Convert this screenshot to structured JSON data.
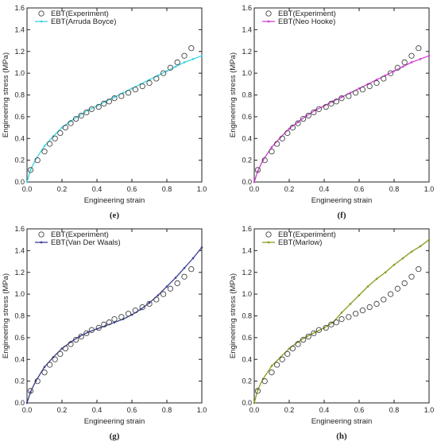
{
  "chart_data": [
    {
      "type": "scatter",
      "caption": "(e)",
      "xlabel": "Engineering strain",
      "ylabel": "Engineering stress (MPa)",
      "xlim": [
        0,
        1.0
      ],
      "ylim": [
        0,
        1.6
      ],
      "xticks": [
        "0.0",
        "0.2",
        "0.4",
        "0.6",
        "0.8",
        "1.0"
      ],
      "yticks": [
        "0.0",
        "0.2",
        "0.4",
        "0.6",
        "0.8",
        "1.0",
        "1.2",
        "1.4",
        "1.6"
      ],
      "legend_position": "top-left",
      "series": [
        {
          "name": "EBT(Experiment)",
          "style": "circles",
          "color": "#555555"
        },
        {
          "name": "EBT(Arruda Boyce)",
          "style": "line",
          "color": "#39d4e0",
          "x": [
            0,
            0.02,
            0.05,
            0.1,
            0.15,
            0.2,
            0.25,
            0.3,
            0.35,
            0.4,
            0.45,
            0.5,
            0.55,
            0.6,
            0.65,
            0.7,
            0.75,
            0.8,
            0.85,
            0.9,
            0.95,
            1.0
          ],
          "y": [
            0,
            0.11,
            0.21,
            0.33,
            0.42,
            0.5,
            0.56,
            0.61,
            0.66,
            0.7,
            0.74,
            0.78,
            0.82,
            0.86,
            0.9,
            0.94,
            0.98,
            1.02,
            1.06,
            1.1,
            1.13,
            1.16
          ]
        }
      ]
    },
    {
      "type": "scatter",
      "caption": "(f)",
      "xlabel": "Engineering strain",
      "ylabel": "Engineering stress (MPa)",
      "xlim": [
        0,
        1.0
      ],
      "ylim": [
        0,
        1.6
      ],
      "xticks": [
        "0.0",
        "0.2",
        "0.4",
        "0.6",
        "0.8",
        "1.0"
      ],
      "yticks": [
        "0.0",
        "0.2",
        "0.4",
        "0.6",
        "0.8",
        "1.0",
        "1.2",
        "1.4",
        "1.6"
      ],
      "legend_position": "top-left",
      "series": [
        {
          "name": "EBT(Experiment)",
          "style": "circles",
          "color": "#555555"
        },
        {
          "name": "EBT(Neo Hooke)",
          "style": "line",
          "color": "#d23ed6",
          "x": [
            0,
            0.02,
            0.05,
            0.1,
            0.15,
            0.2,
            0.25,
            0.3,
            0.35,
            0.4,
            0.45,
            0.5,
            0.55,
            0.6,
            0.65,
            0.7,
            0.75,
            0.8,
            0.85,
            0.9,
            0.95,
            1.0
          ],
          "y": [
            0,
            0.1,
            0.2,
            0.32,
            0.41,
            0.49,
            0.55,
            0.61,
            0.66,
            0.7,
            0.74,
            0.78,
            0.82,
            0.86,
            0.9,
            0.94,
            0.98,
            1.02,
            1.06,
            1.1,
            1.13,
            1.16
          ]
        }
      ]
    },
    {
      "type": "scatter",
      "caption": "(g)",
      "xlabel": "Engineering strain",
      "ylabel": "Engineering stress (MPa)",
      "xlim": [
        0,
        1.0
      ],
      "ylim": [
        0,
        1.6
      ],
      "xticks": [
        "0.0",
        "0.2",
        "0.4",
        "0.6",
        "0.8",
        "1.0"
      ],
      "yticks": [
        "0.0",
        "0.2",
        "0.4",
        "0.6",
        "0.8",
        "1.0",
        "1.2",
        "1.4",
        "1.6"
      ],
      "legend_position": "top-left",
      "series": [
        {
          "name": "EBT(Experiment)",
          "style": "circles",
          "color": "#555555"
        },
        {
          "name": "EBT(Van Der Waals)",
          "style": "line",
          "color": "#3a3f96",
          "x": [
            0,
            0.02,
            0.05,
            0.1,
            0.15,
            0.2,
            0.25,
            0.3,
            0.35,
            0.4,
            0.45,
            0.5,
            0.55,
            0.6,
            0.65,
            0.7,
            0.75,
            0.8,
            0.85,
            0.9,
            0.95,
            1.0
          ],
          "y": [
            0,
            0.1,
            0.2,
            0.33,
            0.42,
            0.5,
            0.56,
            0.61,
            0.65,
            0.68,
            0.71,
            0.74,
            0.77,
            0.81,
            0.86,
            0.92,
            0.99,
            1.07,
            1.15,
            1.24,
            1.33,
            1.43
          ]
        }
      ]
    },
    {
      "type": "scatter",
      "caption": "(h)",
      "xlabel": "Engineering strain",
      "ylabel": "Engineering stress (MPa)",
      "xlim": [
        0,
        1.0
      ],
      "ylim": [
        0,
        1.6
      ],
      "xticks": [
        "0.0",
        "0.2",
        "0.4",
        "0.6",
        "0.8",
        "1.0"
      ],
      "yticks": [
        "0.0",
        "0.2",
        "0.4",
        "0.6",
        "0.8",
        "1.0",
        "1.2",
        "1.4",
        "1.6"
      ],
      "legend_position": "top-left",
      "series": [
        {
          "name": "EBT(Experiment)",
          "style": "circles",
          "color": "#555555"
        },
        {
          "name": "EBT(Marlow)",
          "style": "line",
          "color": "#8b9a1e",
          "x": [
            0,
            0.02,
            0.05,
            0.1,
            0.15,
            0.2,
            0.25,
            0.3,
            0.35,
            0.4,
            0.45,
            0.5,
            0.55,
            0.6,
            0.65,
            0.7,
            0.75,
            0.8,
            0.85,
            0.9,
            0.95,
            1.0
          ],
          "y": [
            0,
            0.12,
            0.22,
            0.34,
            0.42,
            0.5,
            0.56,
            0.61,
            0.65,
            0.69,
            0.74,
            0.83,
            0.91,
            0.99,
            1.07,
            1.14,
            1.2,
            1.27,
            1.33,
            1.39,
            1.44,
            1.5
          ]
        }
      ]
    }
  ],
  "experiment_points": {
    "x": [
      0.02,
      0.06,
      0.1,
      0.13,
      0.16,
      0.19,
      0.22,
      0.25,
      0.28,
      0.31,
      0.34,
      0.37,
      0.41,
      0.44,
      0.47,
      0.5,
      0.54,
      0.58,
      0.62,
      0.66,
      0.7,
      0.74,
      0.78,
      0.82,
      0.86,
      0.9,
      0.94
    ],
    "y": [
      0.11,
      0.2,
      0.28,
      0.35,
      0.4,
      0.45,
      0.5,
      0.54,
      0.58,
      0.61,
      0.64,
      0.67,
      0.69,
      0.72,
      0.74,
      0.77,
      0.79,
      0.82,
      0.85,
      0.88,
      0.91,
      0.95,
      1.0,
      1.05,
      1.1,
      1.16,
      1.23
    ]
  }
}
